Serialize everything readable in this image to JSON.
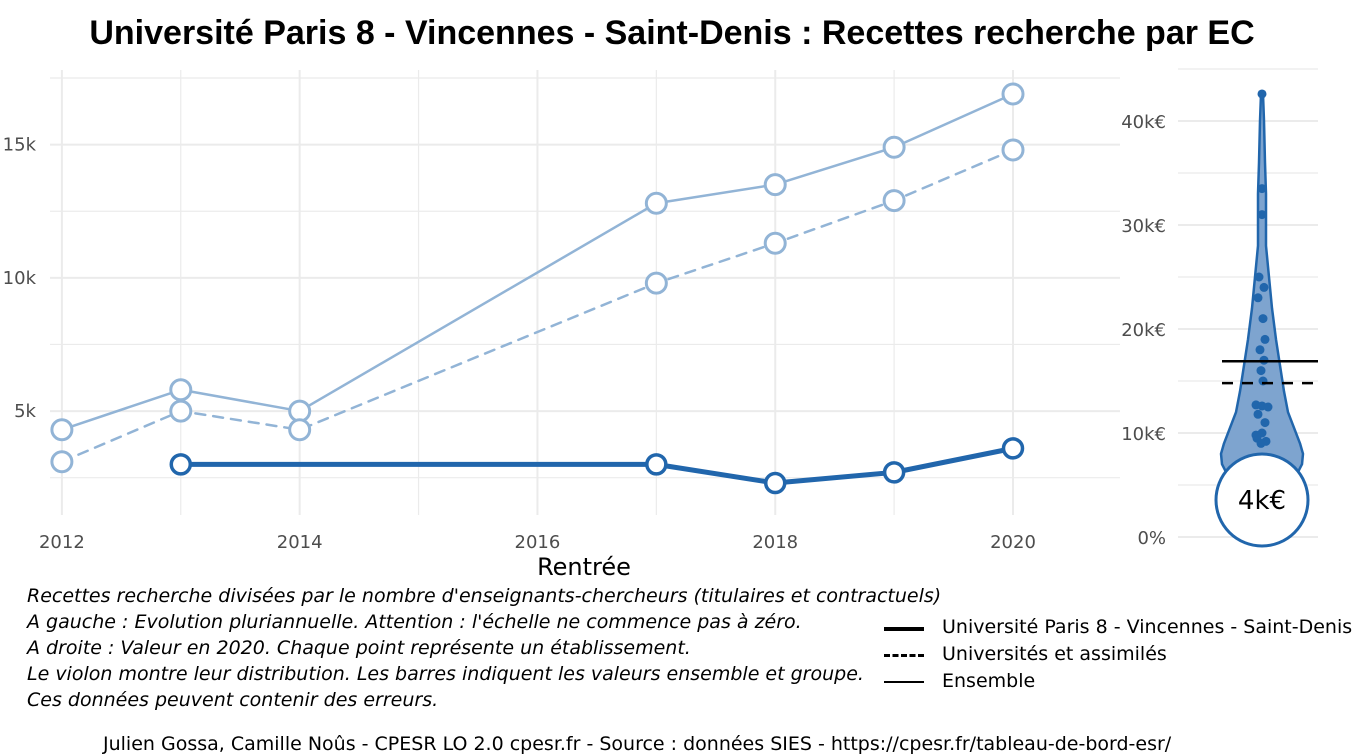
{
  "title": "Université Paris 8 - Vincennes - Saint-Denis  :  Recettes recherche par EC",
  "chart_data": [
    {
      "type": "line",
      "xlabel": "Rentrée",
      "ylabel": "",
      "x_ticks": [
        "2012",
        "2014",
        "2016",
        "2018",
        "2020"
      ],
      "y_ticks": [
        "5k",
        "10k",
        "15k"
      ],
      "xlim": [
        2011.9,
        2020.9
      ],
      "ylim": [
        1100,
        17800
      ],
      "grid": true,
      "series": [
        {
          "name": "Ensemble",
          "style": "solid",
          "color": "#92b4d6",
          "x": [
            2012,
            2013,
            2014,
            2017,
            2018,
            2019,
            2020
          ],
          "values": [
            4300,
            5800,
            5000,
            12800,
            13500,
            14900,
            16900
          ]
        },
        {
          "name": "Universités et assimilés",
          "style": "dashed",
          "color": "#92b4d6",
          "x": [
            2012,
            2013,
            2014,
            2017,
            2018,
            2019,
            2020
          ],
          "values": [
            3100,
            5000,
            4300,
            9800,
            11300,
            12900,
            14800
          ]
        },
        {
          "name": "Université Paris 8 - Vincennes - Saint-Denis",
          "style": "solid-bold",
          "color": "#2166ac",
          "x": [
            2013,
            2017,
            2018,
            2019,
            2020
          ],
          "values": [
            3000,
            3000,
            2300,
            2700,
            3600
          ]
        }
      ]
    },
    {
      "type": "violin",
      "y_ticks": [
        "0%",
        "10k€",
        "20k€",
        "30k€",
        "40k€"
      ],
      "ylim": [
        0,
        42500
      ],
      "highlight_label": "4k€",
      "highlight_value": 3600,
      "ensemble_value": 16900,
      "group_value": 14800,
      "color": "#2166ac",
      "points": [
        42600,
        33500,
        31000,
        25000,
        24000,
        23000,
        21000,
        19000,
        18000,
        17000,
        16000,
        15000,
        12700,
        12600,
        12500,
        11800,
        11000,
        10000,
        9500,
        9200,
        9000,
        9800
      ]
    }
  ],
  "notes": [
    "Recettes recherche divisées par le nombre d'enseignants-chercheurs (titulaires et contractuels)",
    "A gauche : Evolution pluriannuelle. Attention : l'échelle ne commence pas à zéro.",
    "A droite : Valeur en 2020. Chaque point représente un établissement.",
    "Le violon montre leur distribution. Les barres indiquent les valeurs ensemble et groupe.",
    "Ces données peuvent contenir des erreurs."
  ],
  "legend": [
    {
      "label": "Université Paris 8 - Vincennes - Saint-Denis",
      "style": "solid"
    },
    {
      "label": "Universités et assimilés",
      "style": "dashed"
    },
    {
      "label": "Ensemble",
      "style": "solid"
    }
  ],
  "caption": "Julien Gossa, Camille Noûs - CPESR LO 2.0 cpesr.fr - Source : données SIES - https://cpesr.fr/tableau-de-bord-esr/"
}
